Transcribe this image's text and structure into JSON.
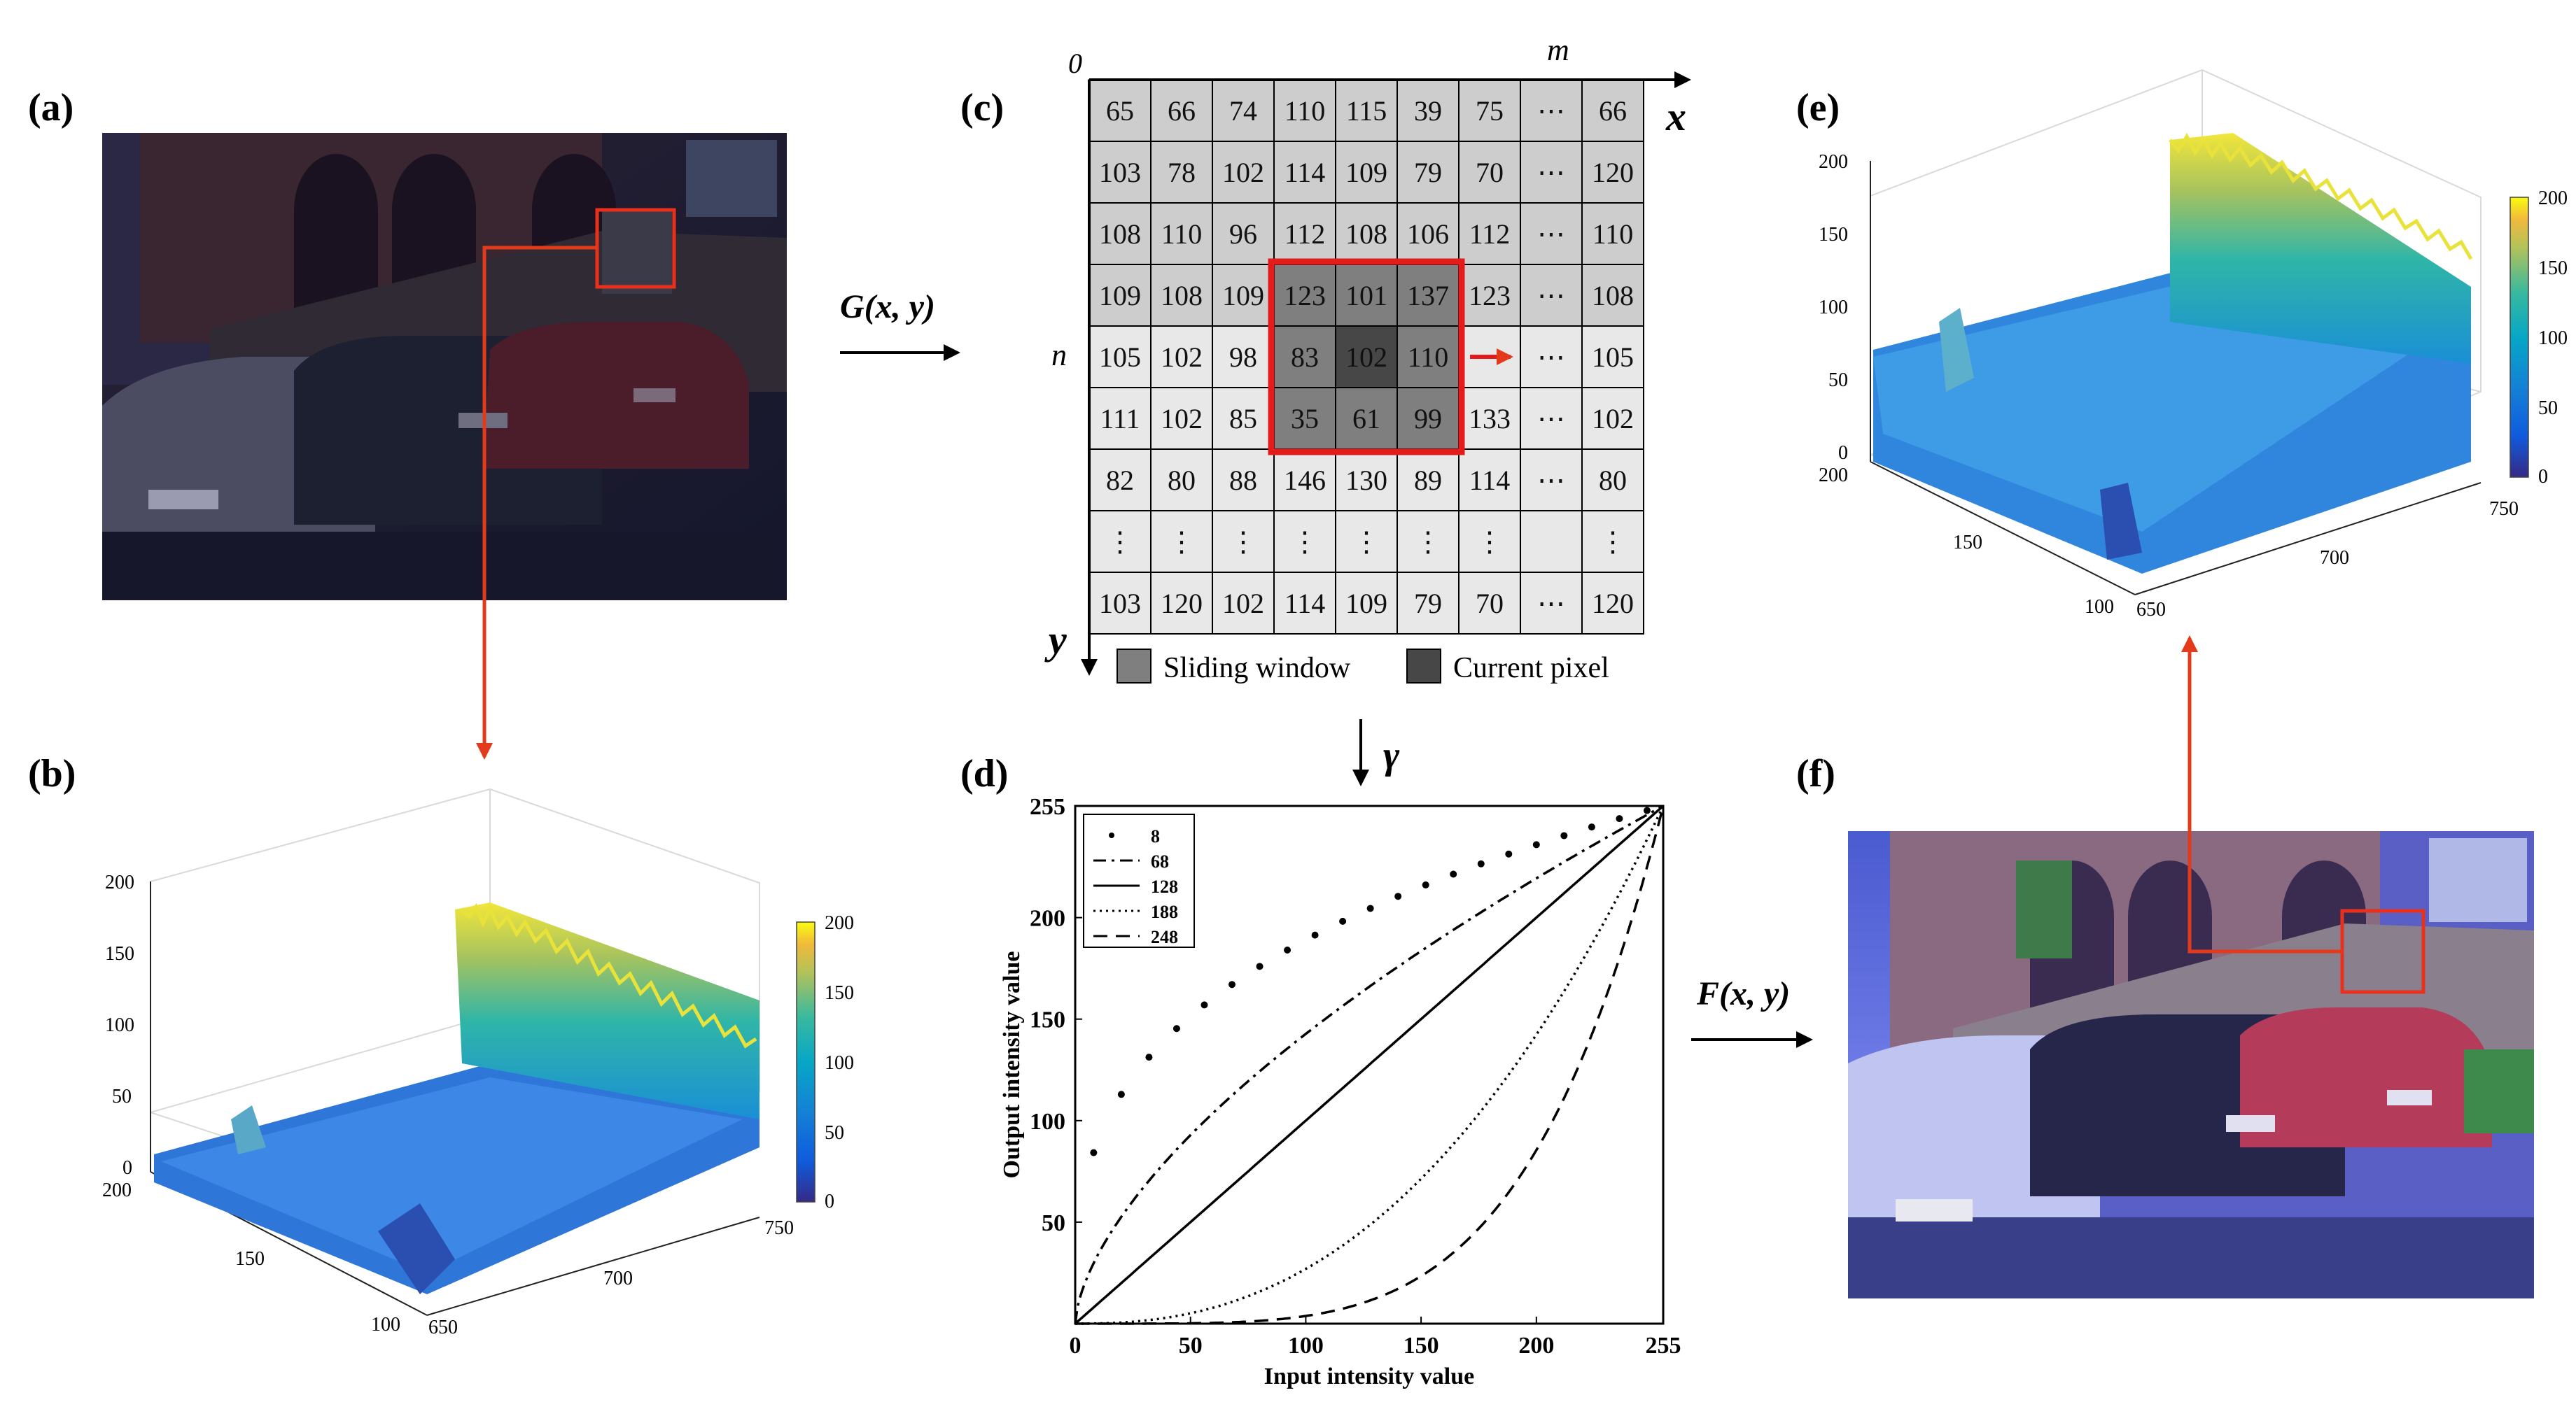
{
  "figure": {
    "panel_labels": {
      "a": "(a)",
      "b": "(b)",
      "c": "(c)",
      "d": "(d)",
      "e": "(e)",
      "f": "(f)"
    },
    "arrow_labels": {
      "g": "G(x, y)",
      "gamma": "γ",
      "f": "F(x, y)"
    }
  },
  "grid": {
    "axis_origin": "0",
    "axis_x_var": "x",
    "axis_y_var": "y",
    "axis_m": "m",
    "axis_n": "n",
    "rows": [
      [
        "65",
        "66",
        "74",
        "110",
        "115",
        "39",
        "75",
        "⋯",
        "66"
      ],
      [
        "103",
        "78",
        "102",
        "114",
        "109",
        "79",
        "70",
        "⋯",
        "120"
      ],
      [
        "108",
        "110",
        "96",
        "112",
        "108",
        "106",
        "112",
        "⋯",
        "110"
      ],
      [
        "109",
        "108",
        "109",
        "123",
        "101",
        "137",
        "123",
        "⋯",
        "108"
      ],
      [
        "105",
        "102",
        "98",
        "83",
        "102",
        "110",
        "",
        "⋯",
        "105"
      ],
      [
        "111",
        "102",
        "85",
        "35",
        "61",
        "99",
        "133",
        "⋯",
        "102"
      ],
      [
        "82",
        "80",
        "88",
        "146",
        "130",
        "89",
        "114",
        "⋯",
        "80"
      ],
      [
        "⋮",
        "⋮",
        "⋮",
        "⋮",
        "⋮",
        "⋮",
        "⋮",
        "",
        "⋮"
      ],
      [
        "103",
        "120",
        "102",
        "114",
        "109",
        "79",
        "70",
        "⋯",
        "120"
      ]
    ],
    "legend": {
      "sliding_window": "Sliding window",
      "current_pixel": "Current pixel"
    },
    "colors": {
      "grid_gray": "#cdcdcd",
      "grid_light": "#e8e8e8",
      "window": "#7f7f7f",
      "current": "#474747",
      "highlight": "#e31b1b"
    }
  },
  "surface_b": {
    "z_ticks": [
      "0",
      "50",
      "100",
      "150",
      "200"
    ],
    "y_ticks": [
      "200",
      "150",
      "100"
    ],
    "x_ticks": [
      "650",
      "700",
      "750"
    ],
    "colorbar_ticks": [
      "0",
      "50",
      "100",
      "150",
      "200"
    ]
  },
  "surface_e": {
    "z_ticks": [
      "0",
      "50",
      "100",
      "150",
      "200"
    ],
    "y_ticks": [
      "200",
      "150",
      "100"
    ],
    "x_ticks": [
      "650",
      "700",
      "750"
    ],
    "colorbar_ticks": [
      "0",
      "50",
      "100",
      "150",
      "200"
    ]
  },
  "chart_data": {
    "type": "line",
    "title": "",
    "xlabel": "Input intensity value",
    "ylabel": "Output intensity value",
    "xlim": [
      0,
      255
    ],
    "ylim": [
      0,
      255
    ],
    "x_ticks": [
      0,
      50,
      100,
      150,
      200,
      255
    ],
    "y_ticks": [
      50,
      100,
      150,
      200,
      255
    ],
    "x_tick_labels": [
      "0",
      "50",
      "100",
      "150",
      "200",
      "255"
    ],
    "y_tick_labels": [
      "50",
      "100",
      "150",
      "200",
      "255"
    ],
    "legend_position": "top-left",
    "series": [
      {
        "name": "8",
        "style": "dots",
        "gamma_exponent": 0.32
      },
      {
        "name": "68",
        "style": "dashdot",
        "gamma_exponent": 0.62
      },
      {
        "name": "128",
        "style": "solid",
        "gamma_exponent": 1.0
      },
      {
        "name": "188",
        "style": "dotted",
        "gamma_exponent": 2.4
      },
      {
        "name": "248",
        "style": "dashed",
        "gamma_exponent": 4.5
      }
    ]
  }
}
